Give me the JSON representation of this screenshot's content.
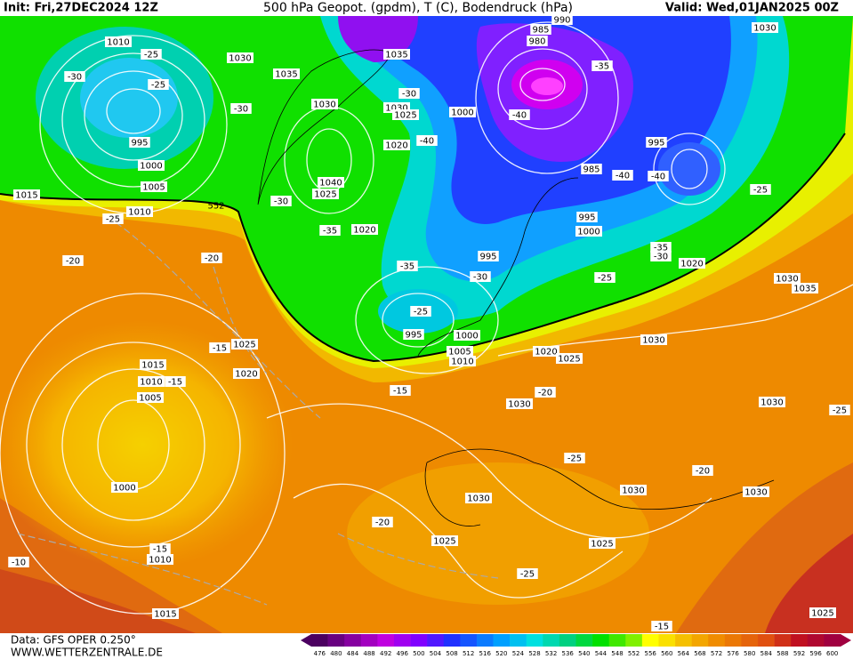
{
  "header": {
    "init": "Init: Fri,27DEC2024 12Z",
    "title": "500 hPa Geopot. (gpdm), T (C), Bodendruck (hPa)",
    "valid": "Valid: Wed,01JAN2025 00Z"
  },
  "footer": {
    "data": "Data: GFS OPER 0.250°",
    "site": "WWW.WETTERZENTRALE.DE"
  },
  "colorbar": {
    "ticks": [
      476,
      480,
      484,
      488,
      492,
      496,
      500,
      504,
      508,
      512,
      516,
      520,
      524,
      528,
      532,
      536,
      540,
      544,
      548,
      552,
      556,
      560,
      564,
      568,
      572,
      576,
      580,
      584,
      588,
      592,
      596,
      600
    ]
  },
  "isobar_labels": [
    "1010",
    "1030",
    "1035",
    "1035",
    "990",
    "985",
    "980",
    "1030",
    "1030",
    "1030",
    "1025",
    "1000",
    "995",
    "1000",
    "1005",
    "1010",
    "1015",
    "1020",
    "1040",
    "1025",
    "1020",
    "995",
    "985",
    "995",
    "1000",
    "995",
    "1020",
    "1030",
    "1035",
    "995",
    "1000",
    "1005",
    "1010",
    "1020",
    "1025",
    "1030",
    "1025",
    "1020",
    "1015",
    "1010",
    "1005",
    "1030",
    "1030",
    "1000",
    "1030",
    "1030",
    "1030",
    "1025",
    "1025",
    "1010",
    "1015",
    "1025"
  ],
  "temperature_labels": [
    "-25",
    "-30",
    "-25",
    "-30",
    "-35",
    "-40",
    "-40",
    "-30",
    "-30",
    "-35",
    "-40",
    "-40",
    "-25",
    "-25",
    "-20",
    "-20",
    "-35",
    "-30",
    "-35",
    "-30",
    "-25",
    "-25",
    "-15",
    "-15",
    "-15",
    "-20",
    "-25",
    "-25",
    "-20",
    "-20",
    "-25",
    "-15",
    "-10",
    "-15"
  ],
  "geopotential_labels": [
    "552"
  ]
}
